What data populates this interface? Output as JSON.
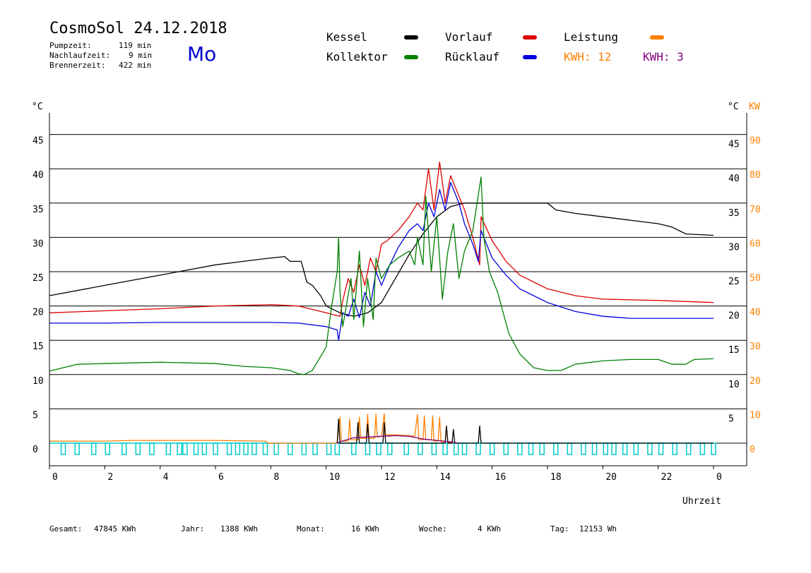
{
  "header": {
    "title": "CosmoSol 24.12.2018",
    "day": "Mo",
    "pumpzeit_label": "Pumpzeit:",
    "pumpzeit_value": "119 min",
    "nachlauf_label": "Nachlaufzeit:",
    "nachlauf_value": "9 min",
    "brenner_label": "Brennerzeit:",
    "brenner_value": "422 min"
  },
  "legend": {
    "kessel": "Kessel",
    "kollektor": "Kollektor",
    "vorlauf": "Vorlauf",
    "ruecklauf": "Rücklauf",
    "leistung": "Leistung",
    "kwh1": "KWH: 12",
    "kwh2": "KWH: 3"
  },
  "axes": {
    "y_left_unit": "°C",
    "y_right_unit": "°C",
    "y_right_unit2": "KW",
    "x_title": "Uhrzeit"
  },
  "footer": {
    "gesamt_label": "Gesamt:",
    "gesamt_value": "47845 KWh",
    "jahr_label": "Jahr:",
    "jahr_value": "1388 KWh",
    "monat_label": "Monat:",
    "monat_value": "16 KWh",
    "woche_label": "Woche:",
    "woche_value": "4 KWh",
    "tag_label": "Tag:",
    "tag_value": "12153 Wh"
  },
  "colors": {
    "kessel": "#000000",
    "kollektor": "#008000",
    "vorlauf": "#dd0000",
    "ruecklauf": "#0000dd",
    "leistung": "#ff8000",
    "kwh2": "#800080",
    "pump": "#00cccc",
    "title_day": "#0000cc"
  },
  "chart_data": {
    "type": "line",
    "xlabel": "Uhrzeit",
    "x_ticks": [
      "0",
      "2",
      "4",
      "6",
      "8",
      "10",
      "12",
      "14",
      "16",
      "18",
      "20",
      "22",
      "0"
    ],
    "xlim": [
      0,
      24
    ],
    "y_left_ticks": [
      "0",
      "5",
      "10",
      "15",
      "20",
      "25",
      "30",
      "35",
      "40",
      "45"
    ],
    "y_right_ticks": [
      "5",
      "10",
      "15",
      "20",
      "25",
      "30",
      "35",
      "40",
      "45"
    ],
    "y_right2_ticks": [
      "0",
      "10",
      "20",
      "30",
      "40",
      "50",
      "60",
      "70",
      "80",
      "90"
    ],
    "ylim": [
      0,
      48
    ],
    "grid": "horizontal",
    "series": [
      {
        "name": "Kessel",
        "color_key": "kessel",
        "points": [
          [
            0,
            21.5
          ],
          [
            2,
            23
          ],
          [
            4,
            24.5
          ],
          [
            6,
            26
          ],
          [
            7,
            26.5
          ],
          [
            8,
            27
          ],
          [
            8.5,
            27.2
          ],
          [
            8.7,
            26.5
          ],
          [
            9.1,
            26.5
          ],
          [
            9.3,
            23.5
          ],
          [
            9.5,
            23
          ],
          [
            9.8,
            21.5
          ],
          [
            10,
            20
          ],
          [
            10.5,
            19
          ],
          [
            11,
            18.5
          ],
          [
            11.5,
            19
          ],
          [
            12,
            20.5
          ],
          [
            12.5,
            24
          ],
          [
            13,
            27.5
          ],
          [
            13.5,
            30.5
          ],
          [
            14,
            33
          ],
          [
            14.5,
            34.5
          ],
          [
            15,
            35
          ],
          [
            16,
            35
          ],
          [
            18,
            35
          ],
          [
            18.3,
            34
          ],
          [
            19,
            33.5
          ],
          [
            20,
            33
          ],
          [
            21,
            32.5
          ],
          [
            22,
            32
          ],
          [
            22.5,
            31.5
          ],
          [
            23,
            30.5
          ],
          [
            24,
            30.3
          ]
        ]
      },
      {
        "name": "Vorlauf",
        "color_key": "vorlauf",
        "points": [
          [
            0,
            19
          ],
          [
            2,
            19.3
          ],
          [
            4,
            19.6
          ],
          [
            6,
            20
          ],
          [
            8,
            20.2
          ],
          [
            9,
            20
          ],
          [
            10,
            19
          ],
          [
            10.5,
            18.5
          ],
          [
            10.6,
            20.8
          ],
          [
            10.8,
            24
          ],
          [
            11,
            22
          ],
          [
            11.2,
            26
          ],
          [
            11.4,
            23
          ],
          [
            11.6,
            27
          ],
          [
            11.8,
            25
          ],
          [
            12,
            29
          ],
          [
            12.2,
            29.5
          ],
          [
            12.6,
            31
          ],
          [
            13,
            33
          ],
          [
            13.3,
            35
          ],
          [
            13.5,
            34
          ],
          [
            13.7,
            40
          ],
          [
            13.9,
            34
          ],
          [
            14.1,
            41
          ],
          [
            14.3,
            35
          ],
          [
            14.5,
            39
          ],
          [
            14.8,
            36
          ],
          [
            15,
            34
          ],
          [
            15.3,
            30
          ],
          [
            15.55,
            26
          ],
          [
            15.6,
            33
          ],
          [
            16,
            29.5
          ],
          [
            16.5,
            26.5
          ],
          [
            17,
            24.5
          ],
          [
            18,
            22.5
          ],
          [
            19,
            21.5
          ],
          [
            20,
            21
          ],
          [
            22,
            20.8
          ],
          [
            24,
            20.5
          ]
        ]
      },
      {
        "name": "Rücklauf",
        "color_key": "ruecklauf",
        "points": [
          [
            0,
            17.5
          ],
          [
            2,
            17.5
          ],
          [
            4,
            17.6
          ],
          [
            6,
            17.6
          ],
          [
            8,
            17.6
          ],
          [
            9,
            17.5
          ],
          [
            10,
            17
          ],
          [
            10.4,
            16.5
          ],
          [
            10.45,
            15
          ],
          [
            10.6,
            19
          ],
          [
            10.8,
            18.5
          ],
          [
            11,
            21
          ],
          [
            11.2,
            18.3
          ],
          [
            11.4,
            22
          ],
          [
            11.6,
            20
          ],
          [
            11.8,
            25
          ],
          [
            12,
            23
          ],
          [
            12.3,
            26
          ],
          [
            12.6,
            28.5
          ],
          [
            13,
            31
          ],
          [
            13.3,
            32
          ],
          [
            13.5,
            31
          ],
          [
            13.7,
            35
          ],
          [
            13.9,
            33
          ],
          [
            14.1,
            37
          ],
          [
            14.3,
            34
          ],
          [
            14.5,
            38
          ],
          [
            14.8,
            35
          ],
          [
            15,
            32
          ],
          [
            15.3,
            29
          ],
          [
            15.5,
            26.5
          ],
          [
            15.6,
            31
          ],
          [
            16,
            27
          ],
          [
            16.5,
            24.5
          ],
          [
            17,
            22.5
          ],
          [
            18,
            20.5
          ],
          [
            19,
            19.2
          ],
          [
            20,
            18.5
          ],
          [
            21,
            18.2
          ],
          [
            24,
            18.2
          ]
        ]
      },
      {
        "name": "Kollektor",
        "color_key": "kollektor",
        "points": [
          [
            0,
            10.5
          ],
          [
            1,
            11.5
          ],
          [
            2,
            11.6
          ],
          [
            4,
            11.8
          ],
          [
            6,
            11.6
          ],
          [
            7,
            11.2
          ],
          [
            8,
            11
          ],
          [
            8.7,
            10.6
          ],
          [
            9,
            10.1
          ],
          [
            9.2,
            10
          ],
          [
            9.5,
            10.6
          ],
          [
            10,
            14
          ],
          [
            10.2,
            20
          ],
          [
            10.4,
            25
          ],
          [
            10.45,
            30
          ],
          [
            10.5,
            22
          ],
          [
            10.6,
            17
          ],
          [
            10.9,
            24
          ],
          [
            11,
            18
          ],
          [
            11.2,
            28
          ],
          [
            11.35,
            17
          ],
          [
            11.5,
            24
          ],
          [
            11.7,
            18
          ],
          [
            11.8,
            27
          ],
          [
            12,
            24
          ],
          [
            12.3,
            26
          ],
          [
            12.6,
            27
          ],
          [
            13,
            28
          ],
          [
            13.2,
            26
          ],
          [
            13.3,
            30
          ],
          [
            13.5,
            26
          ],
          [
            13.6,
            36
          ],
          [
            13.8,
            25
          ],
          [
            14,
            33
          ],
          [
            14.2,
            21
          ],
          [
            14.4,
            28
          ],
          [
            14.6,
            32
          ],
          [
            14.8,
            24
          ],
          [
            15,
            28
          ],
          [
            15.3,
            31
          ],
          [
            15.6,
            38.8
          ],
          [
            15.7,
            30
          ],
          [
            15.9,
            25
          ],
          [
            16.2,
            22
          ],
          [
            16.6,
            16
          ],
          [
            17,
            13
          ],
          [
            17.5,
            11
          ],
          [
            18,
            10.6
          ],
          [
            18.5,
            10.6
          ],
          [
            19,
            11.5
          ],
          [
            20,
            12
          ],
          [
            21,
            12.2
          ],
          [
            22,
            12.2
          ],
          [
            22.5,
            11.5
          ],
          [
            23,
            11.5
          ],
          [
            23.3,
            12.2
          ],
          [
            24,
            12.3
          ]
        ]
      },
      {
        "name": "Leistung",
        "color_key": "leistung",
        "points": [
          [
            0,
            0.3
          ],
          [
            2,
            0.3
          ],
          [
            3,
            0.4
          ],
          [
            4,
            0.4
          ],
          [
            6,
            0.4
          ],
          [
            7.8,
            0.3
          ],
          [
            7.9,
            0
          ],
          [
            10.4,
            0
          ],
          [
            10.5,
            3.8
          ],
          [
            10.55,
            0.3
          ],
          [
            10.8,
            0.3
          ],
          [
            10.85,
            3.5
          ],
          [
            10.9,
            0.5
          ],
          [
            11.15,
            0.5
          ],
          [
            11.2,
            3.8
          ],
          [
            11.25,
            0.7
          ],
          [
            11.45,
            0.7
          ],
          [
            11.5,
            4.2
          ],
          [
            11.55,
            0.7
          ],
          [
            11.75,
            0.7
          ],
          [
            11.8,
            4.2
          ],
          [
            11.85,
            0.9
          ],
          [
            12,
            1
          ],
          [
            12.1,
            4.3
          ],
          [
            12.15,
            1.2
          ],
          [
            12.5,
            1.2
          ],
          [
            13,
            1.1
          ],
          [
            13.2,
            1
          ],
          [
            13.3,
            4.2
          ],
          [
            13.35,
            0.5
          ],
          [
            13.5,
            0.5
          ],
          [
            13.55,
            4
          ],
          [
            13.6,
            0.5
          ],
          [
            13.8,
            0.5
          ],
          [
            13.85,
            4
          ],
          [
            13.9,
            0.3
          ],
          [
            14.05,
            0.3
          ],
          [
            14.1,
            3.8
          ],
          [
            14.15,
            0.2
          ],
          [
            14.3,
            0.2
          ],
          [
            14.35,
            2.5
          ],
          [
            14.4,
            0.1
          ],
          [
            14.7,
            0.1
          ],
          [
            14.75,
            0
          ]
        ]
      },
      {
        "name": "Kessel-Brenner",
        "color_key": "kessel",
        "points": [
          [
            10.4,
            0
          ],
          [
            10.45,
            3.5
          ],
          [
            10.5,
            0
          ],
          [
            11.1,
            0
          ],
          [
            11.15,
            3
          ],
          [
            11.2,
            0
          ],
          [
            11.45,
            0
          ],
          [
            11.5,
            2.8
          ],
          [
            11.55,
            0
          ],
          [
            12.05,
            0
          ],
          [
            12.1,
            3
          ],
          [
            12.15,
            0
          ],
          [
            14.3,
            0
          ],
          [
            14.35,
            2.5
          ],
          [
            14.4,
            0
          ],
          [
            14.55,
            0
          ],
          [
            14.6,
            2
          ],
          [
            14.65,
            0
          ],
          [
            15.5,
            0
          ],
          [
            15.55,
            2.5
          ],
          [
            15.6,
            0
          ],
          [
            24,
            0
          ]
        ]
      },
      {
        "name": "KWH-violett",
        "color_key": "kwh2",
        "points": [
          [
            10.4,
            0
          ],
          [
            10.5,
            0.2
          ],
          [
            11,
            0.8
          ],
          [
            11.5,
            0.9
          ],
          [
            12,
            1.0
          ],
          [
            12.5,
            1.1
          ],
          [
            13,
            1.0
          ],
          [
            13.5,
            0.6
          ],
          [
            14,
            0.4
          ],
          [
            14.5,
            0.2
          ],
          [
            14.75,
            0
          ]
        ]
      }
    ],
    "pump_pulses": [
      0.5,
      1.0,
      1.6,
      2.1,
      2.7,
      3.2,
      3.7,
      4.3,
      4.7,
      4.9,
      5.3,
      5.6,
      6.0,
      6.5,
      6.8,
      7.1,
      7.4,
      7.8,
      8.2,
      8.7,
      9.2,
      9.6,
      10.1,
      10.4,
      11.0,
      11.5,
      11.9,
      12.3,
      12.9,
      13.4,
      13.9,
      14.3,
      14.7,
      15.0,
      15.5,
      16.0,
      16.5,
      17.0,
      17.4,
      17.8,
      18.3,
      18.8,
      19.3,
      19.7,
      20.1,
      20.4,
      20.8,
      21.2,
      21.7,
      22.1,
      22.6,
      23.1,
      23.6,
      24.0
    ]
  }
}
